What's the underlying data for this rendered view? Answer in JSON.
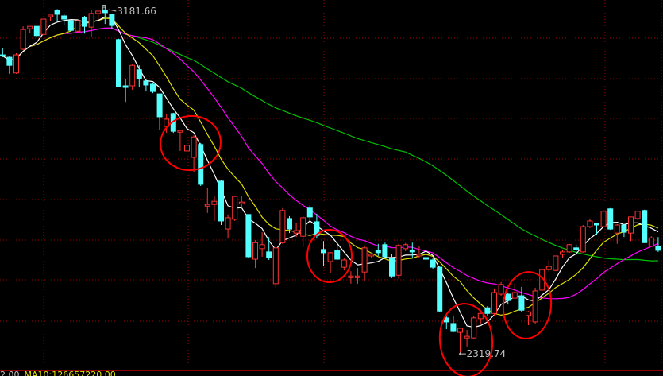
{
  "chart_data": {
    "type": "candlestick",
    "title": "",
    "xlabel": "",
    "ylabel": "",
    "grid": true,
    "colors": {
      "up": "#ff3232",
      "down": "#54ffff",
      "ma_short": "#ffffff",
      "ma_mid": "#e0e000",
      "ma_long1": "#ff00ff",
      "ma_long2": "#00c000",
      "grid": "#a00000",
      "annotation_circle": "#ff0000",
      "background": "#000000"
    },
    "moving_averages": [
      {
        "period": 5,
        "color": "#ffffff"
      },
      {
        "period": 10,
        "color": "#e0e000"
      },
      {
        "period": 20,
        "color": "#ff00ff"
      },
      {
        "period": 60,
        "color": "#00c000"
      }
    ],
    "ohlc": [
      [
        3061,
        3077,
        3055,
        3059
      ],
      [
        3055,
        3059,
        3014,
        3035
      ],
      [
        3016,
        3065,
        3014,
        3061
      ],
      [
        3075,
        3132,
        3073,
        3124
      ],
      [
        3126,
        3132,
        3116,
        3132
      ],
      [
        3132,
        3132,
        3105,
        3109
      ],
      [
        3112,
        3150,
        3112,
        3150
      ],
      [
        3156,
        3160,
        3146,
        3160
      ],
      [
        3172,
        3175,
        3144,
        3162
      ],
      [
        3158,
        3164,
        3134,
        3150
      ],
      [
        3146,
        3148,
        3118,
        3122
      ],
      [
        3120,
        3148,
        3116,
        3146
      ],
      [
        3154,
        3158,
        3114,
        3132
      ],
      [
        3130,
        3174,
        3105,
        3164
      ],
      [
        3164,
        3170,
        3148,
        3170
      ],
      [
        3172,
        3181.66,
        3138,
        3166
      ],
      [
        3162,
        3162,
        3126,
        3134
      ],
      [
        3099,
        3101,
        2980,
        2982
      ],
      [
        2984,
        3002,
        2944,
        2980
      ],
      [
        2984,
        3039,
        2974,
        3035
      ],
      [
        3024,
        3035,
        2980,
        3002
      ],
      [
        2996,
        3000,
        2970,
        2986
      ],
      [
        2988,
        2992,
        2966,
        2970
      ],
      [
        2964,
        2964,
        2875,
        2907
      ],
      [
        2883,
        2915,
        2867,
        2901
      ],
      [
        2915,
        2917,
        2867,
        2871
      ],
      [
        2869,
        2873,
        2822,
        2873
      ],
      [
        2822,
        2861,
        2810,
        2836
      ],
      [
        2806,
        2861,
        2770,
        2857
      ],
      [
        2838,
        2842,
        2735,
        2739
      ],
      [
        2685,
        2729,
        2668,
        2689
      ],
      [
        2689,
        2711,
        2648,
        2697
      ],
      [
        2747,
        2749,
        2638,
        2648
      ],
      [
        2628,
        2664,
        2604,
        2656
      ],
      [
        2652,
        2711,
        2648,
        2709
      ],
      [
        2691,
        2709,
        2680,
        2695
      ],
      [
        2664,
        2664,
        2555,
        2559
      ],
      [
        2553,
        2600,
        2531,
        2594
      ],
      [
        2579,
        2620,
        2559,
        2589
      ],
      [
        2571,
        2608,
        2551,
        2557
      ],
      [
        2492,
        2585,
        2482,
        2581
      ],
      [
        2594,
        2680,
        2591,
        2674
      ],
      [
        2654,
        2660,
        2618,
        2628
      ],
      [
        2618,
        2644,
        2608,
        2624
      ],
      [
        2610,
        2660,
        2583,
        2656
      ],
      [
        2680,
        2687,
        2648,
        2658
      ],
      [
        2646,
        2666,
        2604,
        2612
      ],
      [
        2577,
        2598,
        2535,
        2569
      ],
      [
        2547,
        2571,
        2519,
        2569
      ],
      [
        2575,
        2594,
        2551,
        2553
      ],
      [
        2533,
        2555,
        2525,
        2551
      ],
      [
        2507,
        2523,
        2492,
        2511
      ],
      [
        2507,
        2531,
        2492,
        2511
      ],
      [
        2521,
        2587,
        2500,
        2581
      ],
      [
        2561,
        2569,
        2557,
        2565
      ],
      [
        2575,
        2591,
        2561,
        2569
      ],
      [
        2589,
        2594,
        2559,
        2559
      ],
      [
        2555,
        2565,
        2506,
        2511
      ],
      [
        2513,
        2591,
        2504,
        2587
      ],
      [
        2579,
        2593,
        2573,
        2589
      ],
      [
        2575,
        2594,
        2555,
        2571
      ],
      [
        2561,
        2585,
        2555,
        2565
      ],
      [
        2557,
        2569,
        2535,
        2553
      ],
      [
        2551,
        2555,
        2529,
        2533
      ],
      [
        2533,
        2537,
        2422,
        2424
      ],
      [
        2407,
        2411,
        2379,
        2397
      ],
      [
        2393,
        2413,
        2371,
        2373
      ],
      [
        2371,
        2383,
        2319.74,
        2381
      ],
      [
        2357,
        2377,
        2336,
        2361
      ],
      [
        2357,
        2411,
        2355,
        2407
      ],
      [
        2405,
        2420,
        2393,
        2418
      ],
      [
        2432,
        2436,
        2411,
        2418
      ],
      [
        2418,
        2480,
        2413,
        2470
      ],
      [
        2466,
        2496,
        2462,
        2490
      ],
      [
        2466,
        2468,
        2440,
        2450
      ],
      [
        2456,
        2492,
        2454,
        2470
      ],
      [
        2462,
        2484,
        2422,
        2426
      ],
      [
        2413,
        2424,
        2389,
        2422
      ],
      [
        2397,
        2482,
        2393,
        2474
      ],
      [
        2476,
        2527,
        2474,
        2527
      ],
      [
        2527,
        2551,
        2521,
        2535
      ],
      [
        2525,
        2561,
        2523,
        2561
      ],
      [
        2565,
        2577,
        2555,
        2571
      ],
      [
        2571,
        2591,
        2569,
        2589
      ],
      [
        2581,
        2589,
        2565,
        2577
      ],
      [
        2571,
        2638,
        2569,
        2634
      ],
      [
        2634,
        2654,
        2630,
        2648
      ],
      [
        2642,
        2644,
        2614,
        2638
      ],
      [
        2634,
        2674,
        2632,
        2672
      ],
      [
        2678,
        2680,
        2626,
        2628
      ],
      [
        2618,
        2640,
        2591,
        2638
      ],
      [
        2638,
        2640,
        2608,
        2620
      ],
      [
        2618,
        2658,
        2598,
        2658
      ],
      [
        2654,
        2674,
        2650,
        2672
      ],
      [
        2674,
        2676,
        2593,
        2594
      ],
      [
        2585,
        2610,
        2585,
        2606
      ],
      [
        2585,
        2608,
        2571,
        2575
      ]
    ],
    "annotations": {
      "high_label": "3181.66",
      "high_marker": "F",
      "low_label": "2319.74",
      "low_arrow": "←"
    }
  },
  "status_bar": {
    "value_prefix": "2.00",
    "ma10_label": "MA10:126657220.00"
  }
}
